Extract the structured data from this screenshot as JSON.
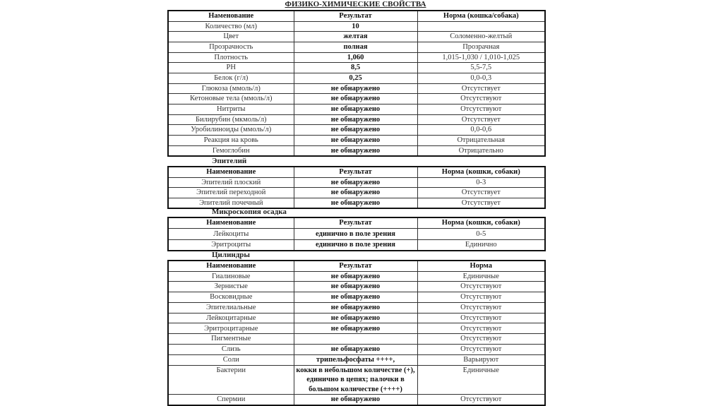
{
  "title": "ФИЗИКО-ХИМИЧЕСКИЕ СВОЙСТВА",
  "tables": [
    {
      "section": "",
      "header": [
        "Наменование",
        "Результат",
        "Норма (кошка/собака)"
      ],
      "rows": [
        [
          "Количество (мл)",
          "10",
          ""
        ],
        [
          "Цвет",
          "желтая",
          "Соломенно-желтый"
        ],
        [
          "Прозрачность",
          "полная",
          "Прозрачная"
        ],
        [
          "Плотность",
          "1,060",
          "1,015-1,030 / 1,010-1,025"
        ],
        [
          "PH",
          "8,5",
          "5,5-7,5"
        ],
        [
          "Белок (г/л)",
          "0,25",
          "0,0-0,3"
        ],
        [
          "Глюкоза (ммоль/л)",
          "не обнаружено",
          "Отсутствует"
        ],
        [
          "Кетоновые тела (ммоль/л)",
          "не обнаружено",
          "Отсутствуют"
        ],
        [
          "Нитриты",
          "не обнаружено",
          "Отсутствуют"
        ],
        [
          "Билирубин (мкмоль/л)",
          "не обнаружено",
          "Отсутствует"
        ],
        [
          "Уробилиноиды (ммоль/л)",
          "не обнаружено",
          "0,0-0,6"
        ],
        [
          "Реакция на кровь",
          "не обнаружено",
          "Отрицательная"
        ],
        [
          "Гемоглобин",
          "не обнаружено",
          "Отрицательно"
        ]
      ]
    },
    {
      "section": "Эпителий",
      "header": [
        "Наименование",
        "Результат",
        "Норма (кошки, собаки)"
      ],
      "rows": [
        [
          "Эпителий плоский",
          "не обнаружено",
          "0-3"
        ],
        [
          "Эпителий переходной",
          "не обнаружено",
          "Отсутствует"
        ],
        [
          "Эпителий почечный",
          "не обнаружено",
          "Отсутствует"
        ]
      ]
    },
    {
      "section": "Микроскопия осадка",
      "header": [
        "Наименование",
        "Результат",
        "Норма (кошки, собаки)"
      ],
      "rows": [
        [
          "Лейкоциты",
          "единично в поле зрения",
          "0-5"
        ],
        [
          "Эритроциты",
          "единично в поле зрения",
          "Единично"
        ]
      ]
    },
    {
      "section": "Цилиндры",
      "header": [
        "Наименование",
        "Результат",
        "Норма"
      ],
      "rows": [
        [
          "Гиалиновые",
          "не обнаружено",
          "Единичные"
        ],
        [
          "Зернистые",
          "не обнаружено",
          "Отсутствуют"
        ],
        [
          "Восковидные",
          "не обнаружено",
          "Отсутствуют"
        ],
        [
          "Эпителиальные",
          "не обнаружено",
          "Отсутствуют"
        ],
        [
          "Лейкоцитарные",
          "не обнаружено",
          "Отсутствуют"
        ],
        [
          "Эритроцитарные",
          "не обнаружено",
          "Отсутствуют"
        ],
        [
          "Пигментные",
          "",
          "Отсутствуют"
        ],
        [
          "Слизь",
          "не обнаружено",
          "Отсутствуют"
        ],
        [
          "Соли",
          "трипельфосфаты ++++,",
          "Варьируют"
        ],
        [
          "Бактерии",
          "кокки в небольшом количестве (+), единично в цепях; палочки в большом количестве (++++)",
          "Единичные"
        ],
        [
          "Спермии",
          "не обнаружено",
          "Отсутствуют"
        ]
      ]
    }
  ]
}
